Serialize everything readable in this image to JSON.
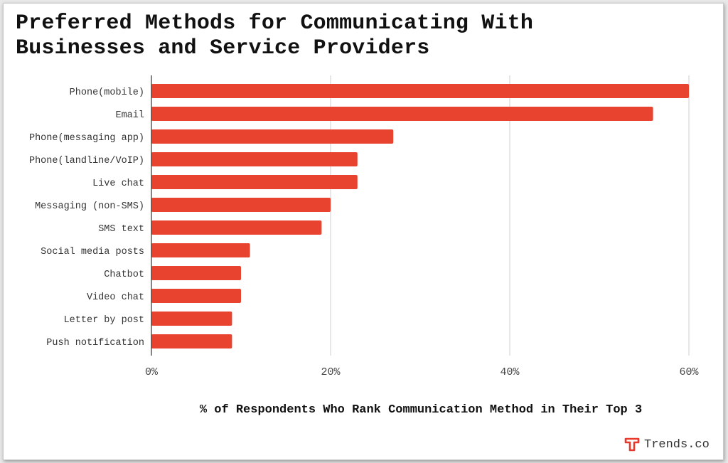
{
  "title_lines": [
    "Preferred Methods for Communicating With",
    "Businesses and Service Providers"
  ],
  "brand": {
    "name": "Trends.co",
    "logo_letter": "T",
    "logo_color": "#e8392c"
  },
  "chart_data": {
    "type": "bar",
    "orientation": "horizontal",
    "title": "Preferred Methods for Communicating With Businesses and Service Providers",
    "categories": [
      "Phone(mobile)",
      "Email",
      "Phone(messaging app)",
      "Phone(landline/VoIP)",
      "Live chat",
      "Messaging (non-SMS)",
      "SMS text",
      "Social media posts",
      "Chatbot",
      "Video chat",
      "Letter by post",
      "Push notification"
    ],
    "values": [
      60,
      56,
      27,
      23,
      23,
      20,
      19,
      11,
      10,
      10,
      9,
      9
    ],
    "xlabel": "% of Respondents Who Rank Communication Method in Their Top 3",
    "ylabel": "",
    "xlim": [
      0,
      60
    ],
    "xticks": [
      0,
      20,
      40,
      60
    ],
    "xtick_labels": [
      "0%",
      "20%",
      "40%",
      "60%"
    ],
    "grid": true,
    "bar_color": "#e8432f"
  }
}
